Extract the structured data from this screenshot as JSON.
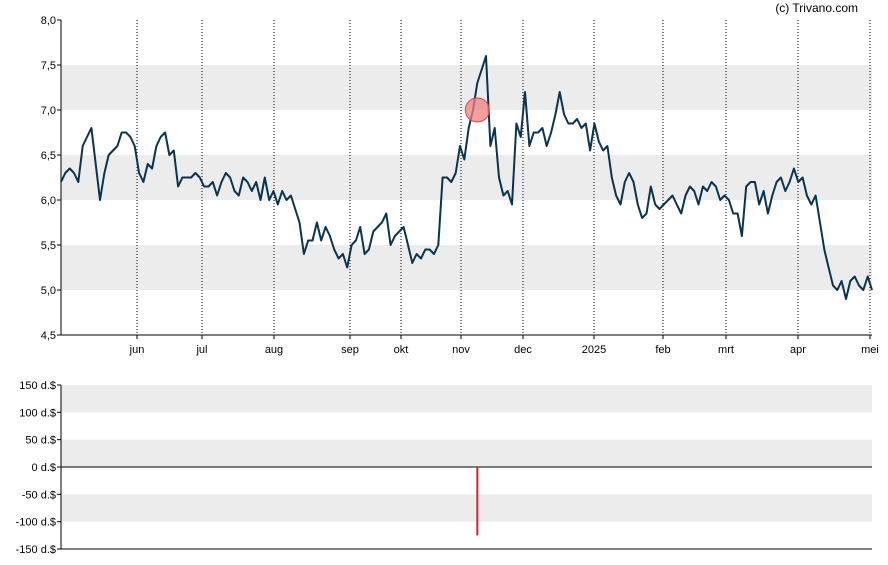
{
  "copyright": "(c) Trivano.com",
  "colors": {
    "line": "#0a3350",
    "band": "#ececec",
    "marker_fill": "#f08080",
    "marker_stroke": "#d04848",
    "volume_bar": "#cc2233"
  },
  "chart_data": [
    {
      "type": "line",
      "title": "",
      "xlabel": "",
      "ylabel": "",
      "ylim": [
        4.5,
        8.0
      ],
      "y_ticks": [
        "4,5",
        "5,0",
        "5,5",
        "6,0",
        "6,5",
        "7,0",
        "7,5",
        "8,0"
      ],
      "x_ticks": [
        "jun",
        "jul",
        "aug",
        "sep",
        "okt",
        "nov",
        "dec",
        "2025",
        "feb",
        "mrt",
        "apr",
        "mei"
      ],
      "grid": "alternating horizontal bands, dotted vertical month lines",
      "legend": "none",
      "marker": {
        "x_index": 96,
        "y": 7.0,
        "label": "event marker"
      },
      "series": [
        {
          "values": [
            6.2,
            6.3,
            6.35,
            6.3,
            6.2,
            6.6,
            6.7,
            6.8,
            6.4,
            6.0,
            6.3,
            6.5,
            6.55,
            6.6,
            6.75,
            6.75,
            6.7,
            6.6,
            6.3,
            6.2,
            6.4,
            6.35,
            6.6,
            6.7,
            6.75,
            6.5,
            6.55,
            6.15,
            6.25,
            6.25,
            6.25,
            6.3,
            6.25,
            6.15,
            6.15,
            6.2,
            6.05,
            6.2,
            6.3,
            6.25,
            6.1,
            6.05,
            6.25,
            6.2,
            6.1,
            6.2,
            6.0,
            6.25,
            6.0,
            6.1,
            5.95,
            6.1,
            6.0,
            6.05,
            5.9,
            5.75,
            5.4,
            5.55,
            5.55,
            5.75,
            5.55,
            5.7,
            5.6,
            5.45,
            5.35,
            5.4,
            5.25,
            5.5,
            5.55,
            5.7,
            5.4,
            5.45,
            5.65,
            5.7,
            5.75,
            5.85,
            5.5,
            5.6,
            5.65,
            5.7,
            5.5,
            5.3,
            5.4,
            5.35,
            5.45,
            5.45,
            5.4,
            5.5,
            6.25,
            6.25,
            6.2,
            6.3,
            6.6,
            6.45,
            6.8,
            7.0,
            7.3,
            7.45,
            7.6,
            6.6,
            6.8,
            6.25,
            6.05,
            6.1,
            5.95,
            6.85,
            6.7,
            7.2,
            6.6,
            6.75,
            6.75,
            6.8,
            6.6,
            6.75,
            6.95,
            7.2,
            6.95,
            6.85,
            6.85,
            6.9,
            6.8,
            6.85,
            6.55,
            6.85,
            6.65,
            6.55,
            6.6,
            6.25,
            6.05,
            5.95,
            6.2,
            6.3,
            6.2,
            5.95,
            5.8,
            5.85,
            6.15,
            5.95,
            5.9,
            5.95,
            6.0,
            6.05,
            5.95,
            5.85,
            6.05,
            6.15,
            6.1,
            5.95,
            6.15,
            6.1,
            6.2,
            6.15,
            6.0,
            6.05,
            6.0,
            5.85,
            5.85,
            5.6,
            6.15,
            6.2,
            6.2,
            5.95,
            6.1,
            5.85,
            6.05,
            6.2,
            6.25,
            6.1,
            6.2,
            6.35,
            6.2,
            6.25,
            6.05,
            5.95,
            6.05,
            5.75,
            5.45,
            5.25,
            5.05,
            5.0,
            5.1,
            4.9,
            5.1,
            5.15,
            5.05,
            5.0,
            5.15,
            5.0
          ]
        }
      ]
    },
    {
      "type": "bar",
      "title": "",
      "xlabel": "",
      "ylabel": "",
      "ylim": [
        -150,
        150
      ],
      "y_ticks": [
        "-150 d.$",
        "-100 d.$",
        "-50 d.$",
        "0 d.$",
        "50 d.$",
        "100 d.$",
        "150 d.$"
      ],
      "grid": "alternating horizontal bands",
      "legend": "none",
      "series": [
        {
          "x_index": 96,
          "values": [
            -125
          ]
        }
      ]
    }
  ]
}
